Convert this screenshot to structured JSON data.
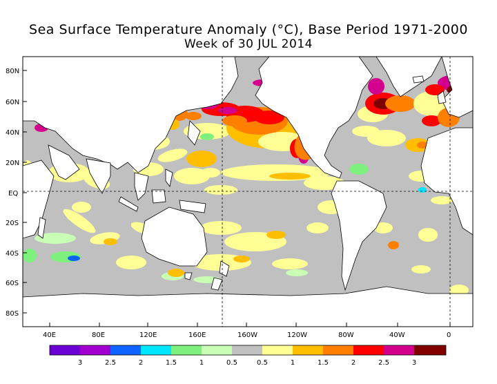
{
  "title": "Sea Surface Temperature Anomaly (°C), Base Period 1971-2000",
  "subtitle": "Week of 30 JUL 2014",
  "lat_labels": [
    "80N",
    "60N",
    "40N",
    "20N",
    "EQ",
    "20S",
    "40S",
    "60S",
    "80S"
  ],
  "lon_labels": [
    "40E",
    "80E",
    "120E",
    "160E",
    "160W",
    "120W",
    "80W",
    "40W",
    "0"
  ],
  "colorbar": {
    "colors": [
      "#6a00d4",
      "#a100d0",
      "#0f64ff",
      "#00e6ff",
      "#7ef07e",
      "#c8ffb4",
      "#c0c0c0",
      "#ffff96",
      "#ffbe00",
      "#ff7f00",
      "#ff0000",
      "#d2008c",
      "#800000"
    ],
    "labels": [
      "3",
      "2.5",
      "2",
      "1.5",
      "1",
      "0.5",
      "0.5",
      "1",
      "1.5",
      "2",
      "2.5",
      "3"
    ]
  },
  "palette": {
    "land": "#ffffff",
    "neutral": "#c0c0c0",
    "light_warm": "#ffff96",
    "warm": "#ffbe00",
    "orange": "#ff7f00",
    "red": "#ff0000",
    "magenta": "#d2008c",
    "dark_red": "#800000",
    "light_cool": "#c8ffb4",
    "cool": "#7ef07e",
    "cyan": "#00e6ff",
    "blue": "#0f64ff"
  }
}
